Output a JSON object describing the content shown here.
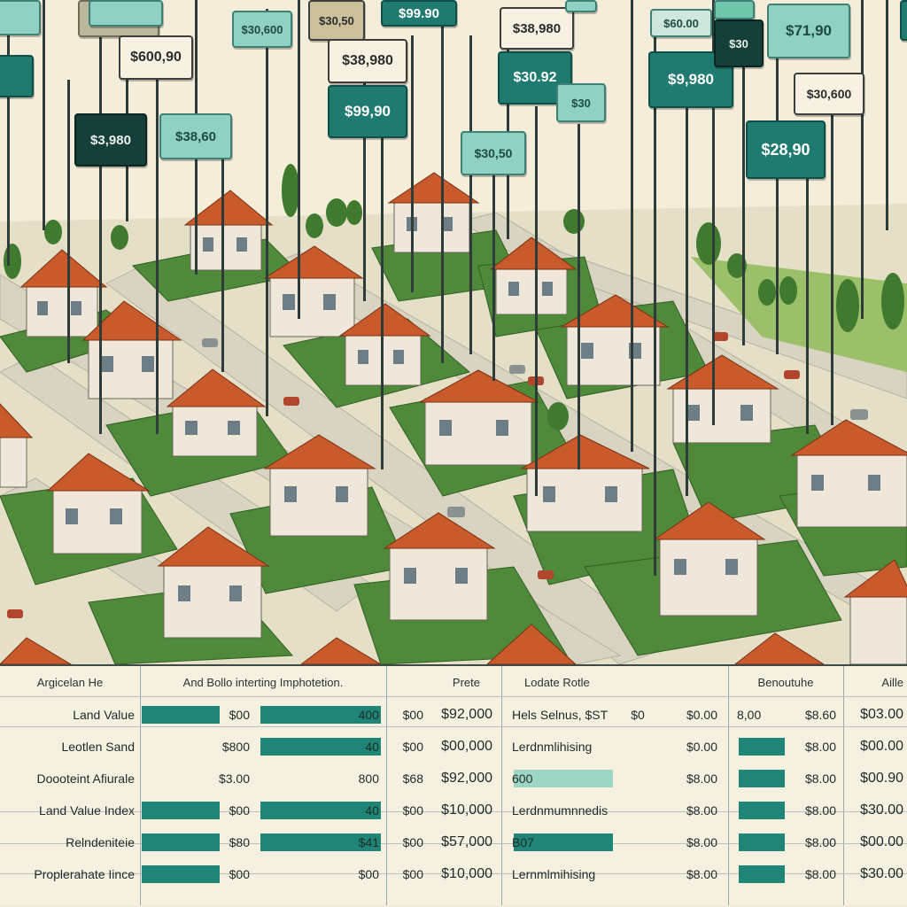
{
  "colors": {
    "accent_teal": "#1f7b70",
    "mint": "#8fd1c3",
    "dark_teal": "#173f3a",
    "cream": "#f7f1e2",
    "roof": "#c85a2c",
    "bar": "#1f8577"
  },
  "price_tags": [
    "$600,90",
    "$3,980",
    "$38,60",
    "$38,980",
    "$99,90",
    "$99.90",
    "$30,50",
    "$38,980",
    "$30.92",
    "$9,980",
    "$30",
    "$71,90",
    "$30,600",
    "$28,90",
    "$60.00"
  ],
  "table": {
    "headers": [
      "Argicelan He",
      "And Bollo interting Imphotetion.",
      "Prete",
      "Lodate Rotle",
      "Benoutuhe",
      "Aille"
    ],
    "rows": [
      {
        "label": "Land Value",
        "c1": "$00",
        "c2": "400",
        "c3": "$00",
        "c4": "$92,000",
        "c5": "Hels Selnus, $ST",
        "c6": "$0",
        "c7": "$0.00",
        "c8": "8,00",
        "c9": "$8.60",
        "c10": "$03.00",
        "bar_left": 1.0,
        "bar_right": 1.0,
        "bar_mid": 0
      },
      {
        "label": "Leotlen Sand",
        "c1": "$800",
        "c2": "40",
        "c3": "$00",
        "c4": "$00,000",
        "c5": "Lerdnmlihising",
        "c6": "",
        "c7": "$0.00",
        "c8": "",
        "c9": "$8.00",
        "c10": "$00.00",
        "bar_left": 0,
        "bar_right": 1.0,
        "bar_mid": 0
      },
      {
        "label": "Doooteint Afiurale",
        "c1": "$3.00",
        "c2": "800",
        "c3": "$68",
        "c4": "$92,000",
        "c5": "600",
        "c6": "",
        "c7": "$8.00",
        "c8": "",
        "c9": "$8.00",
        "c10": "$00.90",
        "bar_left": 0,
        "bar_right": 0,
        "bar_mid": 1.0
      },
      {
        "label": "Land Value Index",
        "c1": "$00",
        "c2": "40",
        "c3": "$00",
        "c4": "$10,000",
        "c5": "Lerdnmumnnedis",
        "c6": "",
        "c7": "$8.00",
        "c8": "",
        "c9": "$8.00",
        "c10": "$30.00",
        "bar_left": 1.0,
        "bar_right": 1.0,
        "bar_mid": 0
      },
      {
        "label": "Relndeniteie",
        "c1": "$80",
        "c2": "$41",
        "c3": "$00",
        "c4": "$57,000",
        "c5": "B07",
        "c6": "",
        "c7": "$8.00",
        "c8": "",
        "c9": "$8.00",
        "c10": "$00.00",
        "bar_left": 1.0,
        "bar_right": 1.0,
        "bar_mid": 1.0
      },
      {
        "label": "Proplerahate Iince",
        "c1": "$00",
        "c2": "$00",
        "c3": "$00",
        "c4": "$10,000",
        "c5": "Lernmlmihising",
        "c6": "",
        "c7": "$8.00",
        "c8": "",
        "c9": "$8.00",
        "c10": "$30.00",
        "bar_left": 1.0,
        "bar_right": 0,
        "bar_mid": 0
      }
    ]
  }
}
